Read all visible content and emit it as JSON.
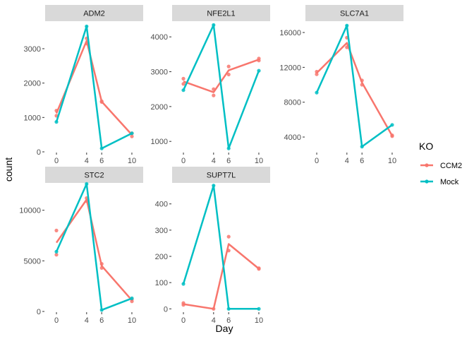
{
  "chart_data": {
    "type": "line",
    "xlabel": "Day",
    "ylabel": "count",
    "x_ticks": [
      0,
      4,
      6,
      10
    ],
    "legend": {
      "title": "KO",
      "position": "right",
      "entries": [
        {
          "name": "CCM2",
          "color": "#F8766D"
        },
        {
          "name": "Mock",
          "color": "#00BFC4"
        }
      ]
    },
    "panels": [
      {
        "title": "ADM2",
        "ylim": [
          0,
          3800
        ],
        "yticks": [
          0,
          1000,
          2000,
          3000
        ],
        "series": [
          {
            "name": "CCM2",
            "color": "#F8766D",
            "points": [
              [
                0,
                1200
              ],
              [
                0,
                1050
              ],
              [
                4,
                3150
              ],
              [
                4,
                3300
              ],
              [
                6,
                1450
              ],
              [
                6,
                1470
              ],
              [
                10,
                450
              ],
              [
                10,
                540
              ]
            ],
            "line": [
              [
                0,
                1120
              ],
              [
                4,
                3230
              ],
              [
                6,
                1460
              ],
              [
                10,
                495
              ]
            ]
          },
          {
            "name": "Mock",
            "color": "#00BFC4",
            "points": [
              [
                0,
                870
              ],
              [
                4,
                3650
              ],
              [
                6,
                100
              ],
              [
                10,
                540
              ]
            ],
            "line": [
              [
                0,
                870
              ],
              [
                4,
                3650
              ],
              [
                6,
                100
              ],
              [
                10,
                540
              ]
            ]
          }
        ]
      },
      {
        "title": "NFE2L1",
        "ylim": [
          700,
          4450
        ],
        "yticks": [
          1000,
          2000,
          3000,
          4000
        ],
        "series": [
          {
            "name": "CCM2",
            "color": "#F8766D",
            "points": [
              [
                0,
                2800
              ],
              [
                0,
                2650
              ],
              [
                4,
                2500
              ],
              [
                4,
                2320
              ],
              [
                6,
                3150
              ],
              [
                6,
                2920
              ],
              [
                10,
                3380
              ],
              [
                10,
                3320
              ]
            ],
            "line": [
              [
                0,
                2720
              ],
              [
                4,
                2410
              ],
              [
                6,
                3040
              ],
              [
                10,
                3350
              ]
            ]
          },
          {
            "name": "Mock",
            "color": "#00BFC4",
            "points": [
              [
                0,
                2470
              ],
              [
                4,
                4340
              ],
              [
                6,
                800
              ],
              [
                10,
                3030
              ]
            ],
            "line": [
              [
                0,
                2470
              ],
              [
                4,
                4340
              ],
              [
                6,
                800
              ],
              [
                10,
                3030
              ]
            ]
          }
        ]
      },
      {
        "title": "SLC7A1",
        "ylim": [
          2300,
          17300
        ],
        "yticks": [
          4000,
          8000,
          12000,
          16000
        ],
        "series": [
          {
            "name": "CCM2",
            "color": "#F8766D",
            "points": [
              [
                0,
                11500
              ],
              [
                0,
                11200
              ],
              [
                4,
                15400
              ],
              [
                4,
                14300
              ],
              [
                6,
                10500
              ],
              [
                6,
                10000
              ],
              [
                10,
                4100
              ],
              [
                10,
                4200
              ]
            ],
            "line": [
              [
                0,
                11350
              ],
              [
                4,
                14800
              ],
              [
                6,
                10250
              ],
              [
                10,
                4150
              ]
            ]
          },
          {
            "name": "Mock",
            "color": "#00BFC4",
            "points": [
              [
                0,
                9100
              ],
              [
                4,
                16800
              ],
              [
                6,
                2900
              ],
              [
                10,
                5400
              ]
            ],
            "line": [
              [
                0,
                9100
              ],
              [
                4,
                16800
              ],
              [
                6,
                2900
              ],
              [
                10,
                5400
              ]
            ]
          }
        ]
      },
      {
        "title": "STC2",
        "ylim": [
          0,
          12700
        ],
        "yticks": [
          0,
          5000,
          10000
        ],
        "series": [
          {
            "name": "CCM2",
            "color": "#F8766D",
            "points": [
              [
                0,
                8000
              ],
              [
                0,
                5600
              ],
              [
                4,
                11200
              ],
              [
                4,
                10900
              ],
              [
                6,
                4700
              ],
              [
                6,
                4300
              ],
              [
                10,
                1000
              ],
              [
                10,
                1200
              ]
            ],
            "line": [
              [
                0,
                6800
              ],
              [
                4,
                11050
              ],
              [
                6,
                4500
              ],
              [
                10,
                1100
              ]
            ]
          },
          {
            "name": "Mock",
            "color": "#00BFC4",
            "points": [
              [
                0,
                5900
              ],
              [
                4,
                12600
              ],
              [
                6,
                150
              ],
              [
                10,
                1300
              ]
            ],
            "line": [
              [
                0,
                5900
              ],
              [
                4,
                12600
              ],
              [
                6,
                150
              ],
              [
                10,
                1300
              ]
            ]
          }
        ]
      },
      {
        "title": "SUPT7L",
        "ylim": [
          -10,
          480
        ],
        "yticks": [
          0,
          100,
          200,
          300,
          400
        ],
        "series": [
          {
            "name": "CCM2",
            "color": "#F8766D",
            "points": [
              [
                0,
                22
              ],
              [
                0,
                15
              ],
              [
                4,
                0
              ],
              [
                6,
                275
              ],
              [
                6,
                222
              ],
              [
                10,
                155
              ],
              [
                10,
                152
              ]
            ],
            "line": [
              [
                0,
                18
              ],
              [
                4,
                0
              ],
              [
                6,
                247
              ],
              [
                10,
                153
              ]
            ]
          },
          {
            "name": "Mock",
            "color": "#00BFC4",
            "points": [
              [
                0,
                95
              ],
              [
                4,
                470
              ],
              [
                6,
                0
              ],
              [
                10,
                0
              ]
            ],
            "line": [
              [
                0,
                95
              ],
              [
                4,
                470
              ],
              [
                6,
                0
              ],
              [
                10,
                0
              ]
            ]
          }
        ]
      }
    ]
  }
}
